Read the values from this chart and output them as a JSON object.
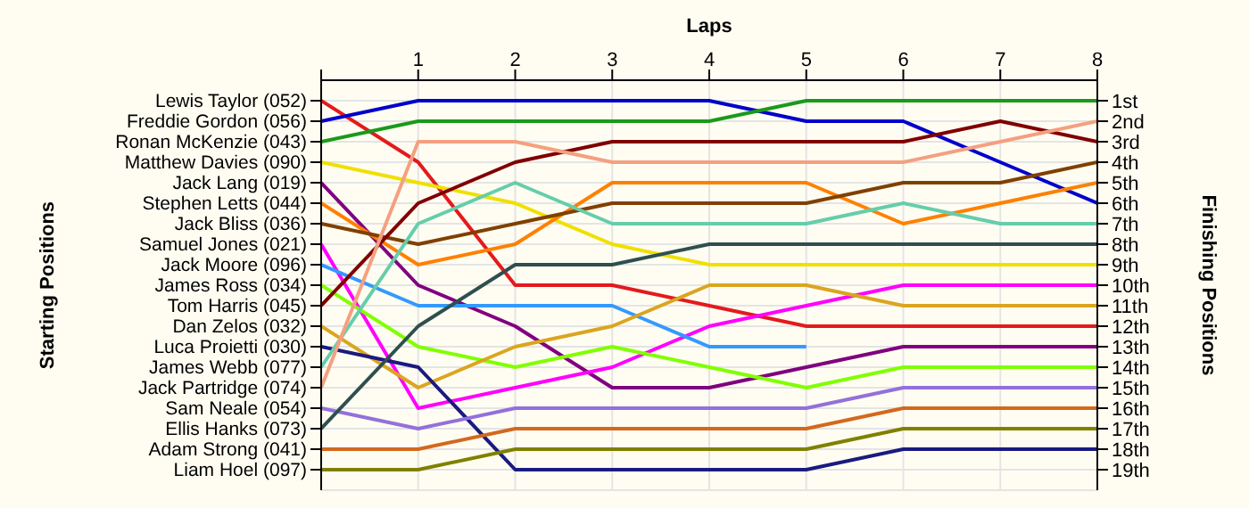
{
  "chart_data": {
    "type": "line",
    "xlabel": "Laps",
    "annotations": [
      "Starting Positions"
    ],
    "y2label": "Finishing Positions",
    "x": [
      0,
      1,
      2,
      3,
      4,
      5,
      6,
      7,
      8
    ],
    "xlim": [
      0,
      8
    ],
    "xticks": [
      {
        "value": 0,
        "label": null
      },
      1,
      2,
      3,
      4,
      5,
      6,
      7,
      8
    ],
    "y2lim": [
      20,
      0
    ],
    "y2ticks": [
      {
        "value": 1,
        "label": "1st"
      },
      {
        "value": 2,
        "label": "2nd"
      },
      {
        "value": 3,
        "label": "3rd"
      },
      {
        "value": 4,
        "label": "4th"
      },
      {
        "value": 5,
        "label": "5th"
      },
      {
        "value": 6,
        "label": "6th"
      },
      {
        "value": 7,
        "label": "7th"
      },
      {
        "value": 8,
        "label": "8th"
      },
      {
        "value": 9,
        "label": "9th"
      },
      {
        "value": 10,
        "label": "10th"
      },
      {
        "value": 11,
        "label": "11th"
      },
      {
        "value": 12,
        "label": "12th"
      },
      {
        "value": 13,
        "label": "13th"
      },
      {
        "value": 14,
        "label": "14th"
      },
      {
        "value": 15,
        "label": "15th"
      },
      {
        "value": 16,
        "label": "16th"
      },
      {
        "value": 17,
        "label": "17th"
      },
      {
        "value": 18,
        "label": "18th"
      },
      {
        "value": 19,
        "label": "19th"
      }
    ],
    "grid": true,
    "marker": "none",
    "line_style": "solid",
    "series": [
      {
        "name": "Lewis Taylor (052)",
        "axis": "y2",
        "color": "#e31a1c",
        "values": [
          1,
          4,
          10,
          10,
          11,
          12,
          12,
          12,
          12
        ]
      },
      {
        "name": "Freddie Gordon (056)",
        "axis": "y2",
        "color": "#0000cc",
        "values": [
          2,
          1,
          1,
          1,
          1,
          2,
          2,
          4,
          6
        ]
      },
      {
        "name": "Ronan McKenzie (043)",
        "axis": "y2",
        "color": "#1a9a1a",
        "values": [
          3,
          2,
          2,
          2,
          2,
          1,
          1,
          1,
          1
        ]
      },
      {
        "name": "Matthew Davies (090)",
        "axis": "y2",
        "color": "#f0e000",
        "values": [
          4,
          5,
          6,
          8,
          9,
          9,
          9,
          9,
          9
        ]
      },
      {
        "name": "Jack Lang (019)",
        "axis": "y2",
        "color": "#800080",
        "values": [
          5,
          10,
          12,
          15,
          15,
          14,
          13,
          13,
          13
        ]
      },
      {
        "name": "Stephen Letts (044)",
        "axis": "y2",
        "color": "#ff8000",
        "values": [
          6,
          9,
          8,
          5,
          5,
          5,
          7,
          6,
          5
        ]
      },
      {
        "name": "Jack Bliss (036)",
        "axis": "y2",
        "color": "#804000",
        "values": [
          7,
          8,
          7,
          6,
          6,
          6,
          5,
          5,
          4
        ]
      },
      {
        "name": "Samuel Jones (021)",
        "axis": "y2",
        "color": "#ff00ff",
        "values": [
          8,
          16,
          15,
          14,
          12,
          11,
          10,
          10,
          10
        ]
      },
      {
        "name": "Jack Moore (096)",
        "axis": "y2",
        "color": "#3399ff",
        "values": [
          9,
          11,
          11,
          11,
          13,
          13,
          null,
          null,
          null
        ]
      },
      {
        "name": "James Ross (034)",
        "axis": "y2",
        "color": "#80ff00",
        "values": [
          10,
          13,
          14,
          13,
          14,
          15,
          14,
          14,
          14
        ]
      },
      {
        "name": "Tom Harris (045)",
        "axis": "y2",
        "color": "#800000",
        "values": [
          11,
          6,
          4,
          3,
          3,
          3,
          3,
          2,
          3
        ]
      },
      {
        "name": "Dan Zelos (032)",
        "axis": "y2",
        "color": "#daa520",
        "values": [
          12,
          15,
          13,
          12,
          10,
          10,
          11,
          11,
          11
        ]
      },
      {
        "name": "Luca Proietti (030)",
        "axis": "y2",
        "color": "#1a1a80",
        "values": [
          13,
          14,
          19,
          19,
          19,
          19,
          18,
          18,
          18
        ]
      },
      {
        "name": "James Webb (077)",
        "axis": "y2",
        "color": "#66cdaa",
        "values": [
          14,
          7,
          5,
          7,
          7,
          7,
          6,
          7,
          7
        ]
      },
      {
        "name": "Jack Partridge (074)",
        "axis": "y2",
        "color": "#f4a080",
        "values": [
          15,
          3,
          3,
          4,
          4,
          4,
          4,
          3,
          2
        ]
      },
      {
        "name": "Sam Neale (054)",
        "axis": "y2",
        "color": "#9370db",
        "values": [
          16,
          17,
          16,
          16,
          16,
          16,
          15,
          15,
          15
        ]
      },
      {
        "name": "Ellis Hanks (073)",
        "axis": "y2",
        "color": "#2f4f4f",
        "values": [
          17,
          12,
          9,
          9,
          8,
          8,
          8,
          8,
          8
        ]
      },
      {
        "name": "Adam Strong (041)",
        "axis": "y2",
        "color": "#d2691e",
        "values": [
          18,
          18,
          17,
          17,
          17,
          17,
          16,
          16,
          16
        ]
      },
      {
        "name": "Liam Hoel (097)",
        "axis": "y2",
        "color": "#808000",
        "values": [
          19,
          19,
          18,
          18,
          18,
          18,
          17,
          17,
          17
        ]
      }
    ]
  }
}
